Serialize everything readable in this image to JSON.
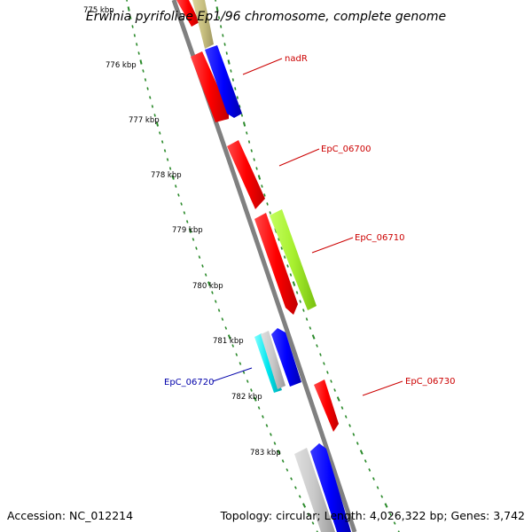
{
  "title": "Erwinia pyrifoliae Ep1/96 chromosome, complete genome",
  "footer": {
    "accession": "Accession: NC_012214",
    "summary": "Topology: circular; Length: 4,026,322 bp; Genes: 3,742"
  },
  "scale_labels": [
    "775 kbp",
    "776 kbp",
    "777 kbp",
    "778 kbp",
    "779 kbp",
    "780 kbp",
    "781 kbp",
    "782 kbp",
    "783 kbp"
  ],
  "gene_labels": [
    {
      "text": "nadR",
      "color": "#cc0000"
    },
    {
      "text": "EpC_06700",
      "color": "#cc0000"
    },
    {
      "text": "EpC_06710",
      "color": "#cc0000"
    },
    {
      "text": "EpC_06720",
      "color": "#0000aa"
    },
    {
      "text": "EpC_06730",
      "color": "#cc0000"
    }
  ],
  "colors": {
    "forward_cds": "#ff0000",
    "reverse_cds": "#0000ff",
    "rna_gene": "#c8c8c8",
    "other_gene": "#c8c080",
    "hypothetical": "#a8f030",
    "trna": "#00e5ee",
    "backbone": "#808080",
    "tick": "#2a8a2a"
  }
}
